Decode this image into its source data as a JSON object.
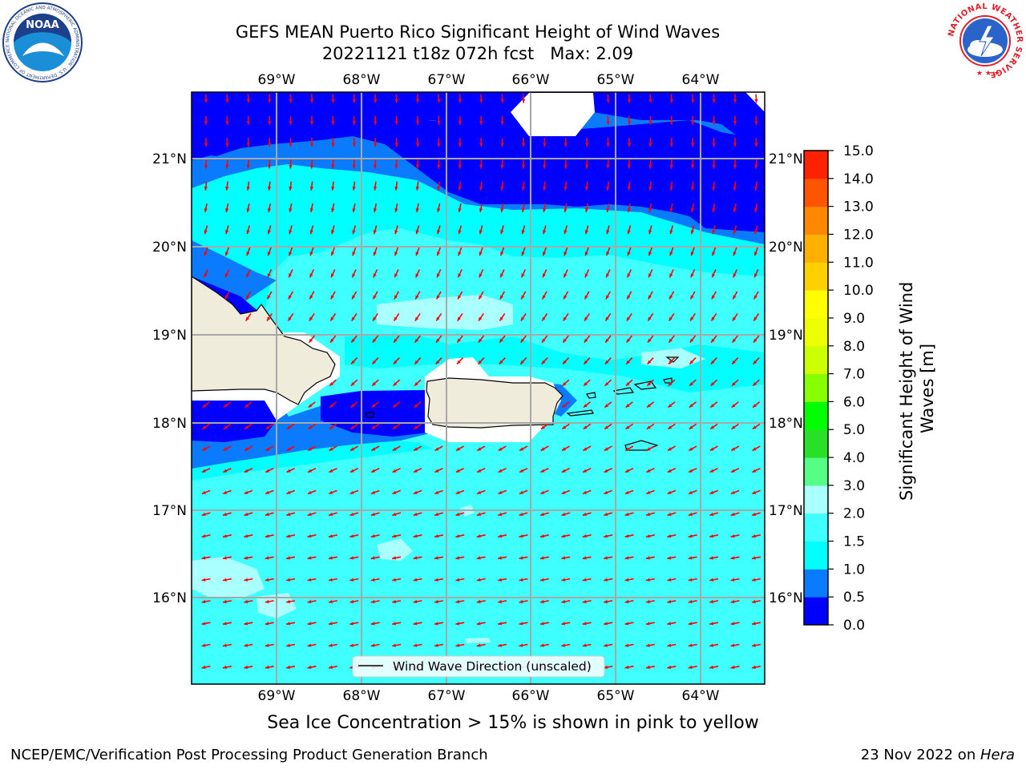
{
  "title": {
    "line1": "GEFS MEAN Puerto Rico Significant Height of Wind Waves",
    "line2": "20221121 t18z 072h fcst   Max: 2.09"
  },
  "map": {
    "lon_labels": [
      "69°W",
      "68°W",
      "67°W",
      "66°W",
      "65°W",
      "64°W"
    ],
    "lat_labels": [
      "21°N",
      "20°N",
      "19°N",
      "18°N",
      "17°N",
      "16°N"
    ],
    "legend_text": "Wind Wave Direction (unscaled)",
    "arrow_color": "#ff0000",
    "land_color": "#efecdc",
    "field_levels": {
      "lt_0_5": "#0000ff",
      "0_5_to_1_0": "#0a7bff",
      "1_0_to_1_5": "#00ffff",
      "1_5_to_2_0": "#3fffff",
      "2_0_to_3_0": "#aaffff"
    }
  },
  "colorbar": {
    "label": "Significant Height of Wind Waves [m]",
    "ticks": [
      "0.0",
      "0.5",
      "1.0",
      "1.5",
      "2.0",
      "3.0",
      "4.0",
      "5.0",
      "6.0",
      "7.0",
      "8.0",
      "9.0",
      "10.0",
      "11.0",
      "12.0",
      "13.0",
      "14.0",
      "15.0"
    ],
    "colors": [
      "#0000ff",
      "#0a7bff",
      "#00ffff",
      "#3fffff",
      "#aaffff",
      "#55ff85",
      "#28e028",
      "#00ff00",
      "#88ff00",
      "#ccff00",
      "#eeff00",
      "#ffff00",
      "#ffd000",
      "#ffb000",
      "#ff8800",
      "#ff5500",
      "#ff2200"
    ]
  },
  "footer": {
    "ice_note": "Sea Ice Concentration > 15% is shown in pink to yellow",
    "credit": "NCEP/EMC/Verification Post Processing Product Generation Branch",
    "date": "23 Nov 2022 on ",
    "host": "Hera"
  },
  "logos": {
    "noaa": "NOAA",
    "noaa_ring": "NATIONAL OCEANIC AND ATMOSPHERIC ADMINISTRATION · U.S. DEPARTMENT OF COMMERCE ·",
    "nws_ring": "NATIONAL WEATHER SERVICE"
  }
}
